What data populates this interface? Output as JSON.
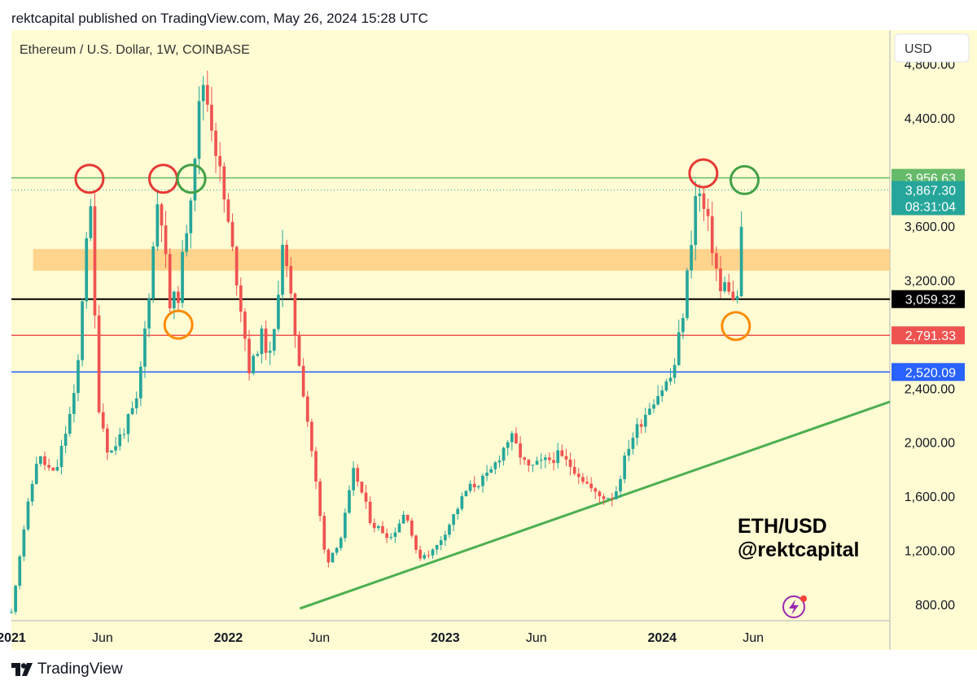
{
  "header": {
    "publish_line": "rektcapital published on TradingView.com, May 26, 2024 15:28 UTC"
  },
  "footer": {
    "brand": "TradingView"
  },
  "currency_button": "USD",
  "colors": {
    "background": "#fffbd3",
    "up": "#26a69a",
    "down": "#ef5350",
    "resistance_green": "#66bb6a",
    "support_black": "#000000",
    "support_red": "#ef5350",
    "support_blue": "#2962ff",
    "zone_orange": "#ffcc80",
    "trendline": "#4caf50",
    "circle_red": "#e53935",
    "circle_green": "#43a047",
    "circle_orange": "#fb8c00"
  },
  "chart_data": {
    "type": "candlestick",
    "title": "Ethereum / U.S. Dollar, 1W, COINBASE",
    "watermark_lines": [
      "ETH/USD",
      "@rektcapital"
    ],
    "x_range": [
      2021.0,
      2025.05
    ],
    "y_range": [
      680,
      5050
    ],
    "y_ticks": [
      800,
      1200,
      1600,
      2000,
      2400,
      3200,
      3600,
      4400,
      4800
    ],
    "y_tick_labels": [
      "800.00",
      "1,200.00",
      "1,600.00",
      "2,000.00",
      "2,400.00",
      "3,200.00",
      "3,600.00",
      "4,400.00",
      "4,800.00"
    ],
    "x_ticks": [
      {
        "x": 2021.0,
        "label": "2021",
        "year": true
      },
      {
        "x": 2021.42,
        "label": "Jun",
        "year": false
      },
      {
        "x": 2022.0,
        "label": "2022",
        "year": true
      },
      {
        "x": 2022.42,
        "label": "Jun",
        "year": false
      },
      {
        "x": 2023.0,
        "label": "2023",
        "year": true
      },
      {
        "x": 2023.42,
        "label": "Jun",
        "year": false
      },
      {
        "x": 2024.0,
        "label": "2024",
        "year": true
      },
      {
        "x": 2024.42,
        "label": "Jun",
        "year": false
      }
    ],
    "levels": [
      {
        "name": "resistance",
        "value": 3956.63,
        "label": "3,956.63",
        "color": "#66bb6a"
      },
      {
        "name": "last-price",
        "value": 3867.3,
        "label": "3,867.30",
        "sublabel": "08:31:04",
        "color": "#26a69a",
        "dotted": true
      },
      {
        "name": "support-black",
        "value": 3059.32,
        "label": "3,059.32",
        "color": "#000000"
      },
      {
        "name": "support-red",
        "value": 2791.33,
        "label": "2,791.33",
        "color": "#ef5350"
      },
      {
        "name": "support-blue",
        "value": 2520.09,
        "label": "2,520.09",
        "color": "#2962ff"
      }
    ],
    "zone": {
      "low": 3270,
      "high": 3430,
      "x_start": 2021.1
    },
    "trendline": {
      "x1": 2022.33,
      "y1": 770,
      "x2": 2025.05,
      "y2": 2300
    },
    "circles": [
      {
        "x": 2021.36,
        "y": 3950,
        "color": "red"
      },
      {
        "x": 2021.7,
        "y": 3950,
        "color": "red"
      },
      {
        "x": 2021.83,
        "y": 3950,
        "color": "green"
      },
      {
        "x": 2024.19,
        "y": 3990,
        "color": "red"
      },
      {
        "x": 2024.38,
        "y": 3940,
        "color": "green"
      },
      {
        "x": 2021.77,
        "y": 2870,
        "color": "orange"
      },
      {
        "x": 2024.34,
        "y": 2860,
        "color": "orange"
      }
    ],
    "anchors": [
      [
        2021.0,
        740
      ],
      [
        2021.05,
        1300
      ],
      [
        2021.12,
        1900
      ],
      [
        2021.2,
        1750
      ],
      [
        2021.3,
        2400
      ],
      [
        2021.36,
        3900
      ],
      [
        2021.4,
        2300
      ],
      [
        2021.45,
        1900
      ],
      [
        2021.52,
        2100
      ],
      [
        2021.58,
        2300
      ],
      [
        2021.64,
        3200
      ],
      [
        2021.68,
        3900
      ],
      [
        2021.73,
        3000
      ],
      [
        2021.77,
        3100
      ],
      [
        2021.83,
        3900
      ],
      [
        2021.88,
        4700
      ],
      [
        2021.92,
        4400
      ],
      [
        2021.96,
        4000
      ],
      [
        2022.05,
        3100
      ],
      [
        2022.1,
        2500
      ],
      [
        2022.15,
        2800
      ],
      [
        2022.2,
        2600
      ],
      [
        2022.25,
        3500
      ],
      [
        2022.3,
        2900
      ],
      [
        2022.38,
        2000
      ],
      [
        2022.45,
        1100
      ],
      [
        2022.52,
        1300
      ],
      [
        2022.58,
        1800
      ],
      [
        2022.66,
        1400
      ],
      [
        2022.75,
        1300
      ],
      [
        2022.82,
        1500
      ],
      [
        2022.87,
        1150
      ],
      [
        2022.95,
        1200
      ],
      [
        2023.02,
        1400
      ],
      [
        2023.1,
        1650
      ],
      [
        2023.2,
        1750
      ],
      [
        2023.3,
        2050
      ],
      [
        2023.38,
        1800
      ],
      [
        2023.45,
        1850
      ],
      [
        2023.52,
        1900
      ],
      [
        2023.6,
        1800
      ],
      [
        2023.7,
        1600
      ],
      [
        2023.78,
        1600
      ],
      [
        2023.85,
        2000
      ],
      [
        2023.95,
        2300
      ],
      [
        2024.05,
        2500
      ],
      [
        2024.1,
        3000
      ],
      [
        2024.16,
        3900
      ],
      [
        2024.22,
        3550
      ],
      [
        2024.27,
        3100
      ],
      [
        2024.3,
        3200
      ],
      [
        2024.34,
        2950
      ],
      [
        2024.38,
        3870
      ]
    ],
    "vol_default": 0.022,
    "seed": 11
  }
}
